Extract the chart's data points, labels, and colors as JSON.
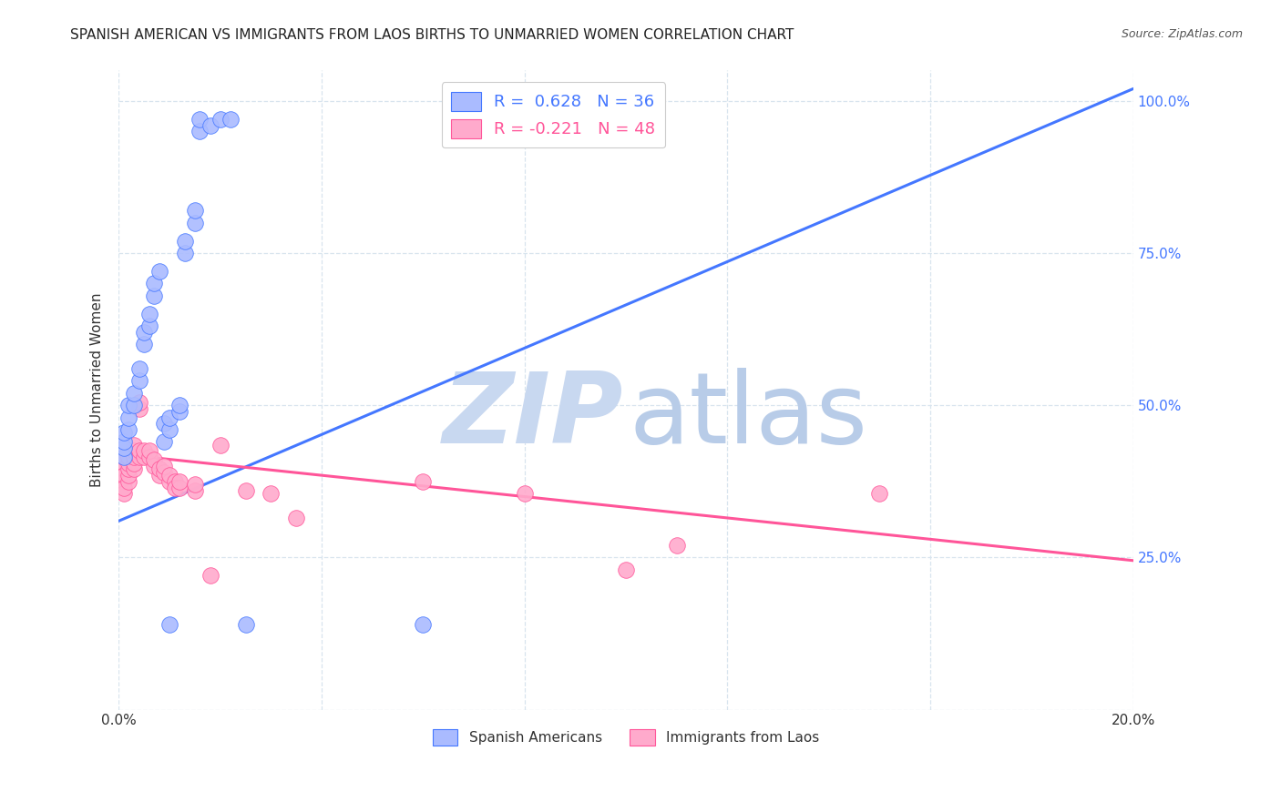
{
  "title": "SPANISH AMERICAN VS IMMIGRANTS FROM LAOS BIRTHS TO UNMARRIED WOMEN CORRELATION CHART",
  "source": "Source: ZipAtlas.com",
  "ylabel": "Births to Unmarried Women",
  "xlim": [
    0.0,
    0.2
  ],
  "ylim": [
    0.0,
    1.05
  ],
  "ytick_vals": [
    0.0,
    0.25,
    0.5,
    0.75,
    1.0
  ],
  "xtick_vals": [
    0.0,
    0.04,
    0.08,
    0.12,
    0.16,
    0.2
  ],
  "xtick_labels": [
    "0.0%",
    "",
    "",
    "",
    "",
    "20.0%"
  ],
  "blue_color": "#AABBFF",
  "pink_color": "#FFAACC",
  "line_blue": "#4477FF",
  "line_pink": "#FF5599",
  "watermark_zip_color": "#C8D8F0",
  "watermark_atlas_color": "#B8CCE8",
  "blue_scatter": [
    [
      0.001,
      0.415
    ],
    [
      0.001,
      0.43
    ],
    [
      0.001,
      0.44
    ],
    [
      0.001,
      0.455
    ],
    [
      0.002,
      0.46
    ],
    [
      0.002,
      0.48
    ],
    [
      0.002,
      0.5
    ],
    [
      0.003,
      0.5
    ],
    [
      0.003,
      0.52
    ],
    [
      0.004,
      0.54
    ],
    [
      0.004,
      0.56
    ],
    [
      0.005,
      0.6
    ],
    [
      0.005,
      0.62
    ],
    [
      0.006,
      0.63
    ],
    [
      0.006,
      0.65
    ],
    [
      0.007,
      0.68
    ],
    [
      0.007,
      0.7
    ],
    [
      0.008,
      0.72
    ],
    [
      0.009,
      0.44
    ],
    [
      0.009,
      0.47
    ],
    [
      0.01,
      0.46
    ],
    [
      0.01,
      0.48
    ],
    [
      0.012,
      0.49
    ],
    [
      0.012,
      0.5
    ],
    [
      0.013,
      0.75
    ],
    [
      0.013,
      0.77
    ],
    [
      0.015,
      0.8
    ],
    [
      0.015,
      0.82
    ],
    [
      0.016,
      0.95
    ],
    [
      0.016,
      0.97
    ],
    [
      0.018,
      0.96
    ],
    [
      0.02,
      0.97
    ],
    [
      0.022,
      0.97
    ],
    [
      0.025,
      0.14
    ],
    [
      0.01,
      0.14
    ],
    [
      0.06,
      0.14
    ]
  ],
  "pink_scatter": [
    [
      0.001,
      0.395
    ],
    [
      0.001,
      0.405
    ],
    [
      0.001,
      0.415
    ],
    [
      0.001,
      0.375
    ],
    [
      0.001,
      0.385
    ],
    [
      0.001,
      0.355
    ],
    [
      0.001,
      0.365
    ],
    [
      0.002,
      0.375
    ],
    [
      0.002,
      0.385
    ],
    [
      0.002,
      0.395
    ],
    [
      0.002,
      0.405
    ],
    [
      0.002,
      0.415
    ],
    [
      0.003,
      0.395
    ],
    [
      0.003,
      0.405
    ],
    [
      0.003,
      0.415
    ],
    [
      0.003,
      0.425
    ],
    [
      0.003,
      0.435
    ],
    [
      0.004,
      0.415
    ],
    [
      0.004,
      0.425
    ],
    [
      0.004,
      0.495
    ],
    [
      0.004,
      0.505
    ],
    [
      0.005,
      0.415
    ],
    [
      0.005,
      0.425
    ],
    [
      0.006,
      0.415
    ],
    [
      0.006,
      0.425
    ],
    [
      0.007,
      0.4
    ],
    [
      0.007,
      0.41
    ],
    [
      0.008,
      0.385
    ],
    [
      0.008,
      0.395
    ],
    [
      0.009,
      0.39
    ],
    [
      0.009,
      0.4
    ],
    [
      0.01,
      0.375
    ],
    [
      0.01,
      0.385
    ],
    [
      0.011,
      0.375
    ],
    [
      0.011,
      0.365
    ],
    [
      0.012,
      0.365
    ],
    [
      0.012,
      0.375
    ],
    [
      0.015,
      0.36
    ],
    [
      0.015,
      0.37
    ],
    [
      0.02,
      0.435
    ],
    [
      0.025,
      0.36
    ],
    [
      0.03,
      0.355
    ],
    [
      0.035,
      0.315
    ],
    [
      0.06,
      0.375
    ],
    [
      0.08,
      0.355
    ],
    [
      0.1,
      0.23
    ],
    [
      0.11,
      0.27
    ],
    [
      0.15,
      0.355
    ],
    [
      0.018,
      0.22
    ]
  ],
  "blue_line_x": [
    0.0,
    0.2
  ],
  "blue_line_y": [
    0.31,
    1.02
  ],
  "pink_line_x": [
    0.0,
    0.2
  ],
  "pink_line_y": [
    0.42,
    0.245
  ],
  "figsize": [
    14.06,
    8.92
  ],
  "dpi": 100
}
